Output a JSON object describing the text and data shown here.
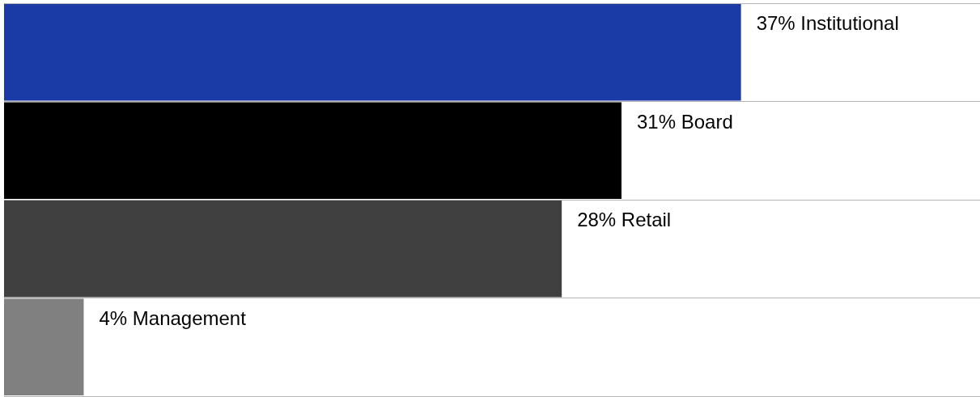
{
  "chart_data": {
    "type": "bar",
    "orientation": "horizontal",
    "categories": [
      null,
      null,
      null,
      null
    ],
    "values": [
      37,
      31,
      28,
      4
    ],
    "colors": [
      "#1a3aa6",
      "#000000",
      "#404040",
      "#808080"
    ],
    "value_labels": [
      "37% Institutional",
      "31% Board",
      "28% Retail",
      "4% Management"
    ],
    "xlim": [
      0,
      49
    ],
    "tick_labels": false,
    "grid": "y"
  }
}
